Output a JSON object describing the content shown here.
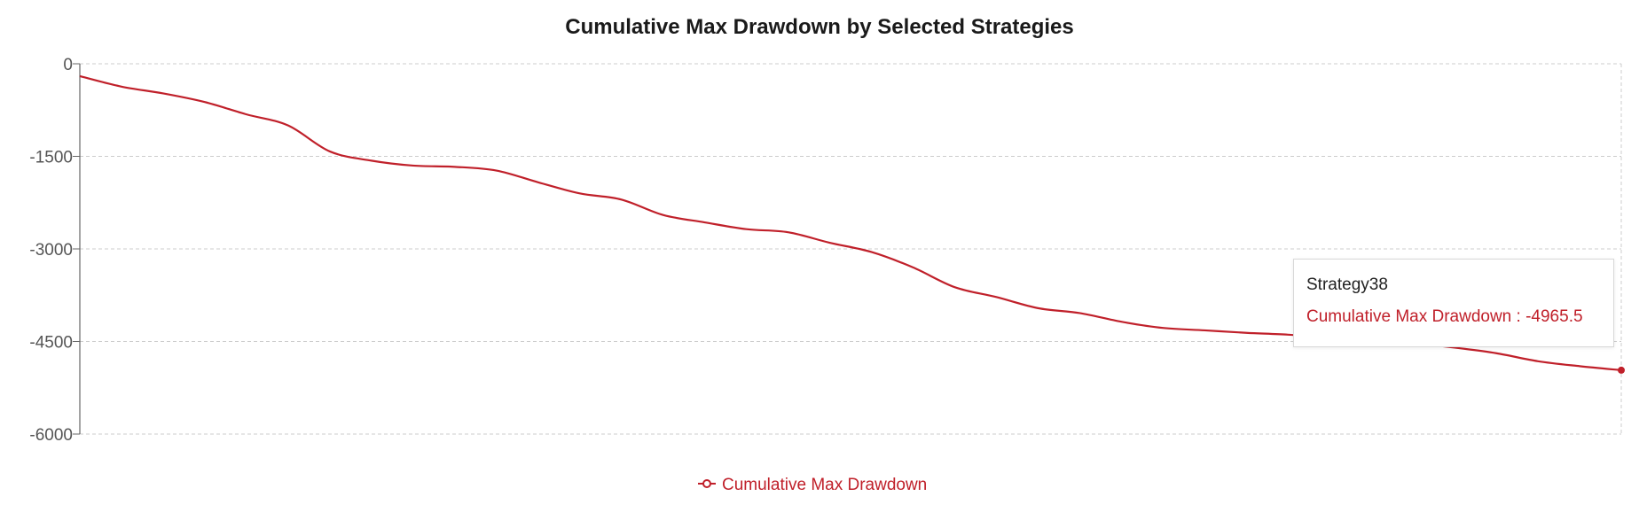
{
  "colors": {
    "series": "#c0202a",
    "grid": "#cccccc",
    "axis": "#666666"
  },
  "chart_data": {
    "type": "line",
    "title": "Cumulative Max Drawdown by Selected Strategies",
    "ylim": [
      -6000,
      0
    ],
    "yticks": [
      "0",
      "-1500",
      "-3000",
      "-4500",
      "-6000"
    ],
    "grid": true,
    "legend_position": "bottom-center",
    "series": [
      {
        "name": "Cumulative Max Drawdown",
        "values": [
          -200,
          -370,
          -480,
          -620,
          -820,
          -1000,
          -1420,
          -1570,
          -1650,
          -1670,
          -1730,
          -1920,
          -2100,
          -2200,
          -2450,
          -2570,
          -2680,
          -2730,
          -2900,
          -3050,
          -3300,
          -3620,
          -3780,
          -3960,
          -4040,
          -4180,
          -4280,
          -4320,
          -4360,
          -4390,
          -4440,
          -4480,
          -4530,
          -4600,
          -4690,
          -4820,
          -4900,
          -4965.5
        ]
      }
    ],
    "tooltip": {
      "category": "Strategy38",
      "label": "Cumulative Max Drawdown",
      "separator": " : ",
      "value": "-4965.5"
    }
  }
}
